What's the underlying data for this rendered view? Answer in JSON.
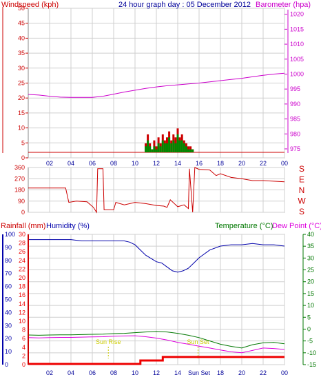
{
  "header": {
    "title": "24 hour graph day : 05 December 2012",
    "wind_label": "Windspeed (kph)",
    "baro_label": "Barometer (hpa)"
  },
  "footer": {
    "rain_label": "Rainfall (mm)",
    "humidity_label": "Humidity (%)",
    "temp_label": "Temperature (°C)",
    "dew_label": "Dew Point (°C)",
    "sunrise_label": "Sun Rise",
    "sunset_label": "Sun Set"
  },
  "colors": {
    "wind": "#cc0000",
    "wind_gust": "#cc0000",
    "wind_avg": "#008800",
    "baro": "#cc00cc",
    "title": "#000099",
    "direction": "#cc0000",
    "humidity": "#0000aa",
    "rain": "#ee0000",
    "temp": "#007700",
    "dew": "#dd00dd",
    "sun": "#cccc00",
    "grid": "#cfcfcf"
  },
  "chart_data": [
    {
      "type": "line",
      "id": "wind_baro",
      "title": "24 hour graph day : 05 December 2012",
      "x_ticks": [
        "02",
        "04",
        "06",
        "08",
        "10",
        "12",
        "14",
        "16",
        "18",
        "20",
        "22",
        "00"
      ],
      "xlim": [
        0,
        24
      ],
      "y_left_label": "Windspeed (kph)",
      "y_left_ticks": [
        0,
        5,
        10,
        15,
        20,
        25,
        30,
        35,
        40,
        45,
        50
      ],
      "y_left_lim": [
        0,
        50
      ],
      "y_right_label": "Barometer (hpa)",
      "y_right_ticks": [
        975,
        980,
        985,
        990,
        995,
        1000,
        1005,
        1010,
        1015,
        1020
      ],
      "y_right_lim": [
        972,
        1022
      ],
      "grid": true,
      "series": [
        {
          "name": "Barometer (hpa)",
          "axis": "right",
          "x": [
            0,
            1,
            2,
            3,
            4,
            5,
            6,
            7,
            8,
            9,
            10,
            11,
            12,
            13,
            14,
            15,
            16,
            17,
            18,
            19,
            20,
            21,
            22,
            23,
            24
          ],
          "values": [
            993.2,
            993.0,
            992.6,
            992.3,
            992.2,
            992.2,
            992.2,
            992.6,
            993.3,
            994.0,
            994.6,
            995.2,
            995.7,
            996.1,
            996.4,
            996.7,
            997.0,
            997.4,
            997.8,
            998.2,
            998.6,
            999.1,
            999.6,
            1000.0,
            1000.3
          ]
        },
        {
          "name": "Wind gust (kph)",
          "axis": "left",
          "x": [
            11.0,
            11.2,
            11.4,
            11.6,
            11.8,
            12.0,
            12.2,
            12.4,
            12.6,
            12.8,
            13.0,
            13.2,
            13.4,
            13.6,
            13.8,
            14.0,
            14.2,
            14.4,
            14.6,
            14.8,
            15.0,
            15.2,
            15.4
          ],
          "values": [
            3,
            6,
            3,
            1,
            4,
            2,
            5,
            3,
            6,
            4,
            5,
            7,
            4,
            6,
            5,
            8,
            5,
            6,
            4,
            3,
            2,
            2,
            1
          ]
        },
        {
          "name": "Wind speed (kph)",
          "axis": "left",
          "x": [
            11.0,
            11.2,
            11.4,
            11.6,
            11.8,
            12.0,
            12.2,
            12.4,
            12.6,
            12.8,
            13.0,
            13.2,
            13.4,
            13.6,
            13.8,
            14.0,
            14.2,
            14.4,
            14.6,
            14.8,
            15.0,
            15.2,
            15.4
          ],
          "values": [
            2,
            4,
            2,
            1,
            2,
            1,
            3,
            2,
            4,
            3,
            3,
            5,
            3,
            4,
            3,
            6,
            4,
            4,
            3,
            2,
            1,
            1,
            1
          ]
        }
      ]
    },
    {
      "type": "line",
      "id": "direction",
      "x_ticks": [
        "02",
        "04",
        "06",
        "08",
        "10",
        "12",
        "14",
        "16",
        "18",
        "20",
        "22",
        "00"
      ],
      "xlim": [
        0,
        24
      ],
      "y_ticks": [
        0,
        90,
        180,
        270,
        360
      ],
      "ylim": [
        0,
        360
      ],
      "y_right_labels": [
        "S",
        "E",
        "N",
        "W",
        "S"
      ],
      "grid": true,
      "series": [
        {
          "name": "Wind direction",
          "x": [
            0,
            3.5,
            3.8,
            4.5,
            5.5,
            6.1,
            6.4,
            6.5,
            7.0,
            7.1,
            8.0,
            8.2,
            9.0,
            10.0,
            11.0,
            12.0,
            12.7,
            13.0,
            13.3,
            14.0,
            14.6,
            15.0,
            15.1,
            15.4,
            15.6,
            16.0,
            17.0,
            17.6,
            18.0,
            19.0,
            20.0,
            21.0,
            22.0,
            23.0,
            24.0
          ],
          "values": [
            195,
            195,
            80,
            90,
            85,
            40,
            0,
            350,
            350,
            20,
            20,
            80,
            60,
            80,
            70,
            55,
            50,
            40,
            100,
            45,
            60,
            30,
            350,
            0,
            360,
            345,
            340,
            295,
            310,
            280,
            270,
            255,
            255,
            250,
            245
          ]
        }
      ]
    },
    {
      "type": "line",
      "id": "temp_hum_rain",
      "x_ticks": [
        "02",
        "04",
        "06",
        "08",
        "10",
        "12",
        "14",
        "Sun Set",
        "18",
        "20",
        "22",
        "00"
      ],
      "xlim": [
        0,
        24
      ],
      "y_left_ticks": [
        0,
        10,
        20,
        30,
        40,
        50,
        60,
        70,
        80,
        90,
        100
      ],
      "y_left_lim": [
        0,
        100
      ],
      "y_left2_ticks": [
        0,
        2,
        4,
        6,
        8,
        10,
        12,
        14,
        16,
        18,
        20,
        22,
        24,
        26,
        28,
        30
      ],
      "y_left2_lim": [
        0,
        30
      ],
      "y_right_ticks": [
        -15,
        -10,
        -5,
        0,
        5,
        10,
        15,
        20,
        25,
        30,
        35,
        40
      ],
      "y_right_lim": [
        -15,
        40
      ],
      "grid": true,
      "sunrise": 7.5,
      "sunset": 15.9,
      "series": [
        {
          "name": "Humidity (%)",
          "axis": "left",
          "x": [
            0,
            1,
            2,
            3,
            4,
            5,
            6,
            7,
            8,
            9,
            9.5,
            10,
            11,
            12,
            12.5,
            13,
            13.5,
            14,
            14.5,
            15,
            15.5,
            16,
            17,
            18,
            19,
            20,
            21,
            22,
            23,
            24
          ],
          "values": [
            96,
            96,
            96,
            96,
            96,
            95,
            95,
            95,
            95,
            95,
            94,
            92,
            84,
            79,
            78,
            75,
            72,
            71,
            72,
            74,
            78,
            82,
            88,
            91,
            92,
            92,
            93,
            92,
            92,
            91
          ]
        },
        {
          "name": "Temperature (°C)",
          "axis": "right",
          "x": [
            0,
            1,
            2,
            3,
            4,
            5,
            6,
            7,
            8,
            9,
            10,
            11,
            12,
            13,
            14,
            15,
            16,
            17,
            18,
            19,
            20,
            21,
            22,
            23,
            24
          ],
          "values": [
            -2.5,
            -2.6,
            -2.5,
            -2.4,
            -2.4,
            -2.3,
            -2.2,
            -2.1,
            -1.9,
            -1.8,
            -1.5,
            -1.2,
            -1.0,
            -1.2,
            -1.8,
            -2.6,
            -3.6,
            -5.0,
            -6.4,
            -7.3,
            -8.0,
            -6.6,
            -5.8,
            -5.6,
            -6.2
          ]
        },
        {
          "name": "Dew Point (°C)",
          "axis": "right",
          "x": [
            0,
            1,
            2,
            3,
            4,
            5,
            6,
            7,
            8,
            9,
            10,
            11,
            12,
            13,
            14,
            15,
            16,
            17,
            18,
            19,
            20,
            21,
            22,
            23,
            24
          ],
          "values": [
            -3.6,
            -3.7,
            -3.6,
            -3.5,
            -3.5,
            -3.4,
            -3.3,
            -3.2,
            -3.0,
            -2.9,
            -2.8,
            -3.2,
            -3.8,
            -4.6,
            -5.6,
            -6.4,
            -7.2,
            -8.0,
            -8.8,
            -9.6,
            -10.0,
            -9.0,
            -8.0,
            -8.2,
            -8.6
          ]
        },
        {
          "name": "Rainfall (mm)",
          "axis": "left2",
          "x": [
            0,
            10.5,
            10.5,
            12.6,
            12.6,
            24
          ],
          "values": [
            0,
            0,
            0.8,
            0.8,
            1.6,
            1.6
          ]
        }
      ]
    }
  ]
}
